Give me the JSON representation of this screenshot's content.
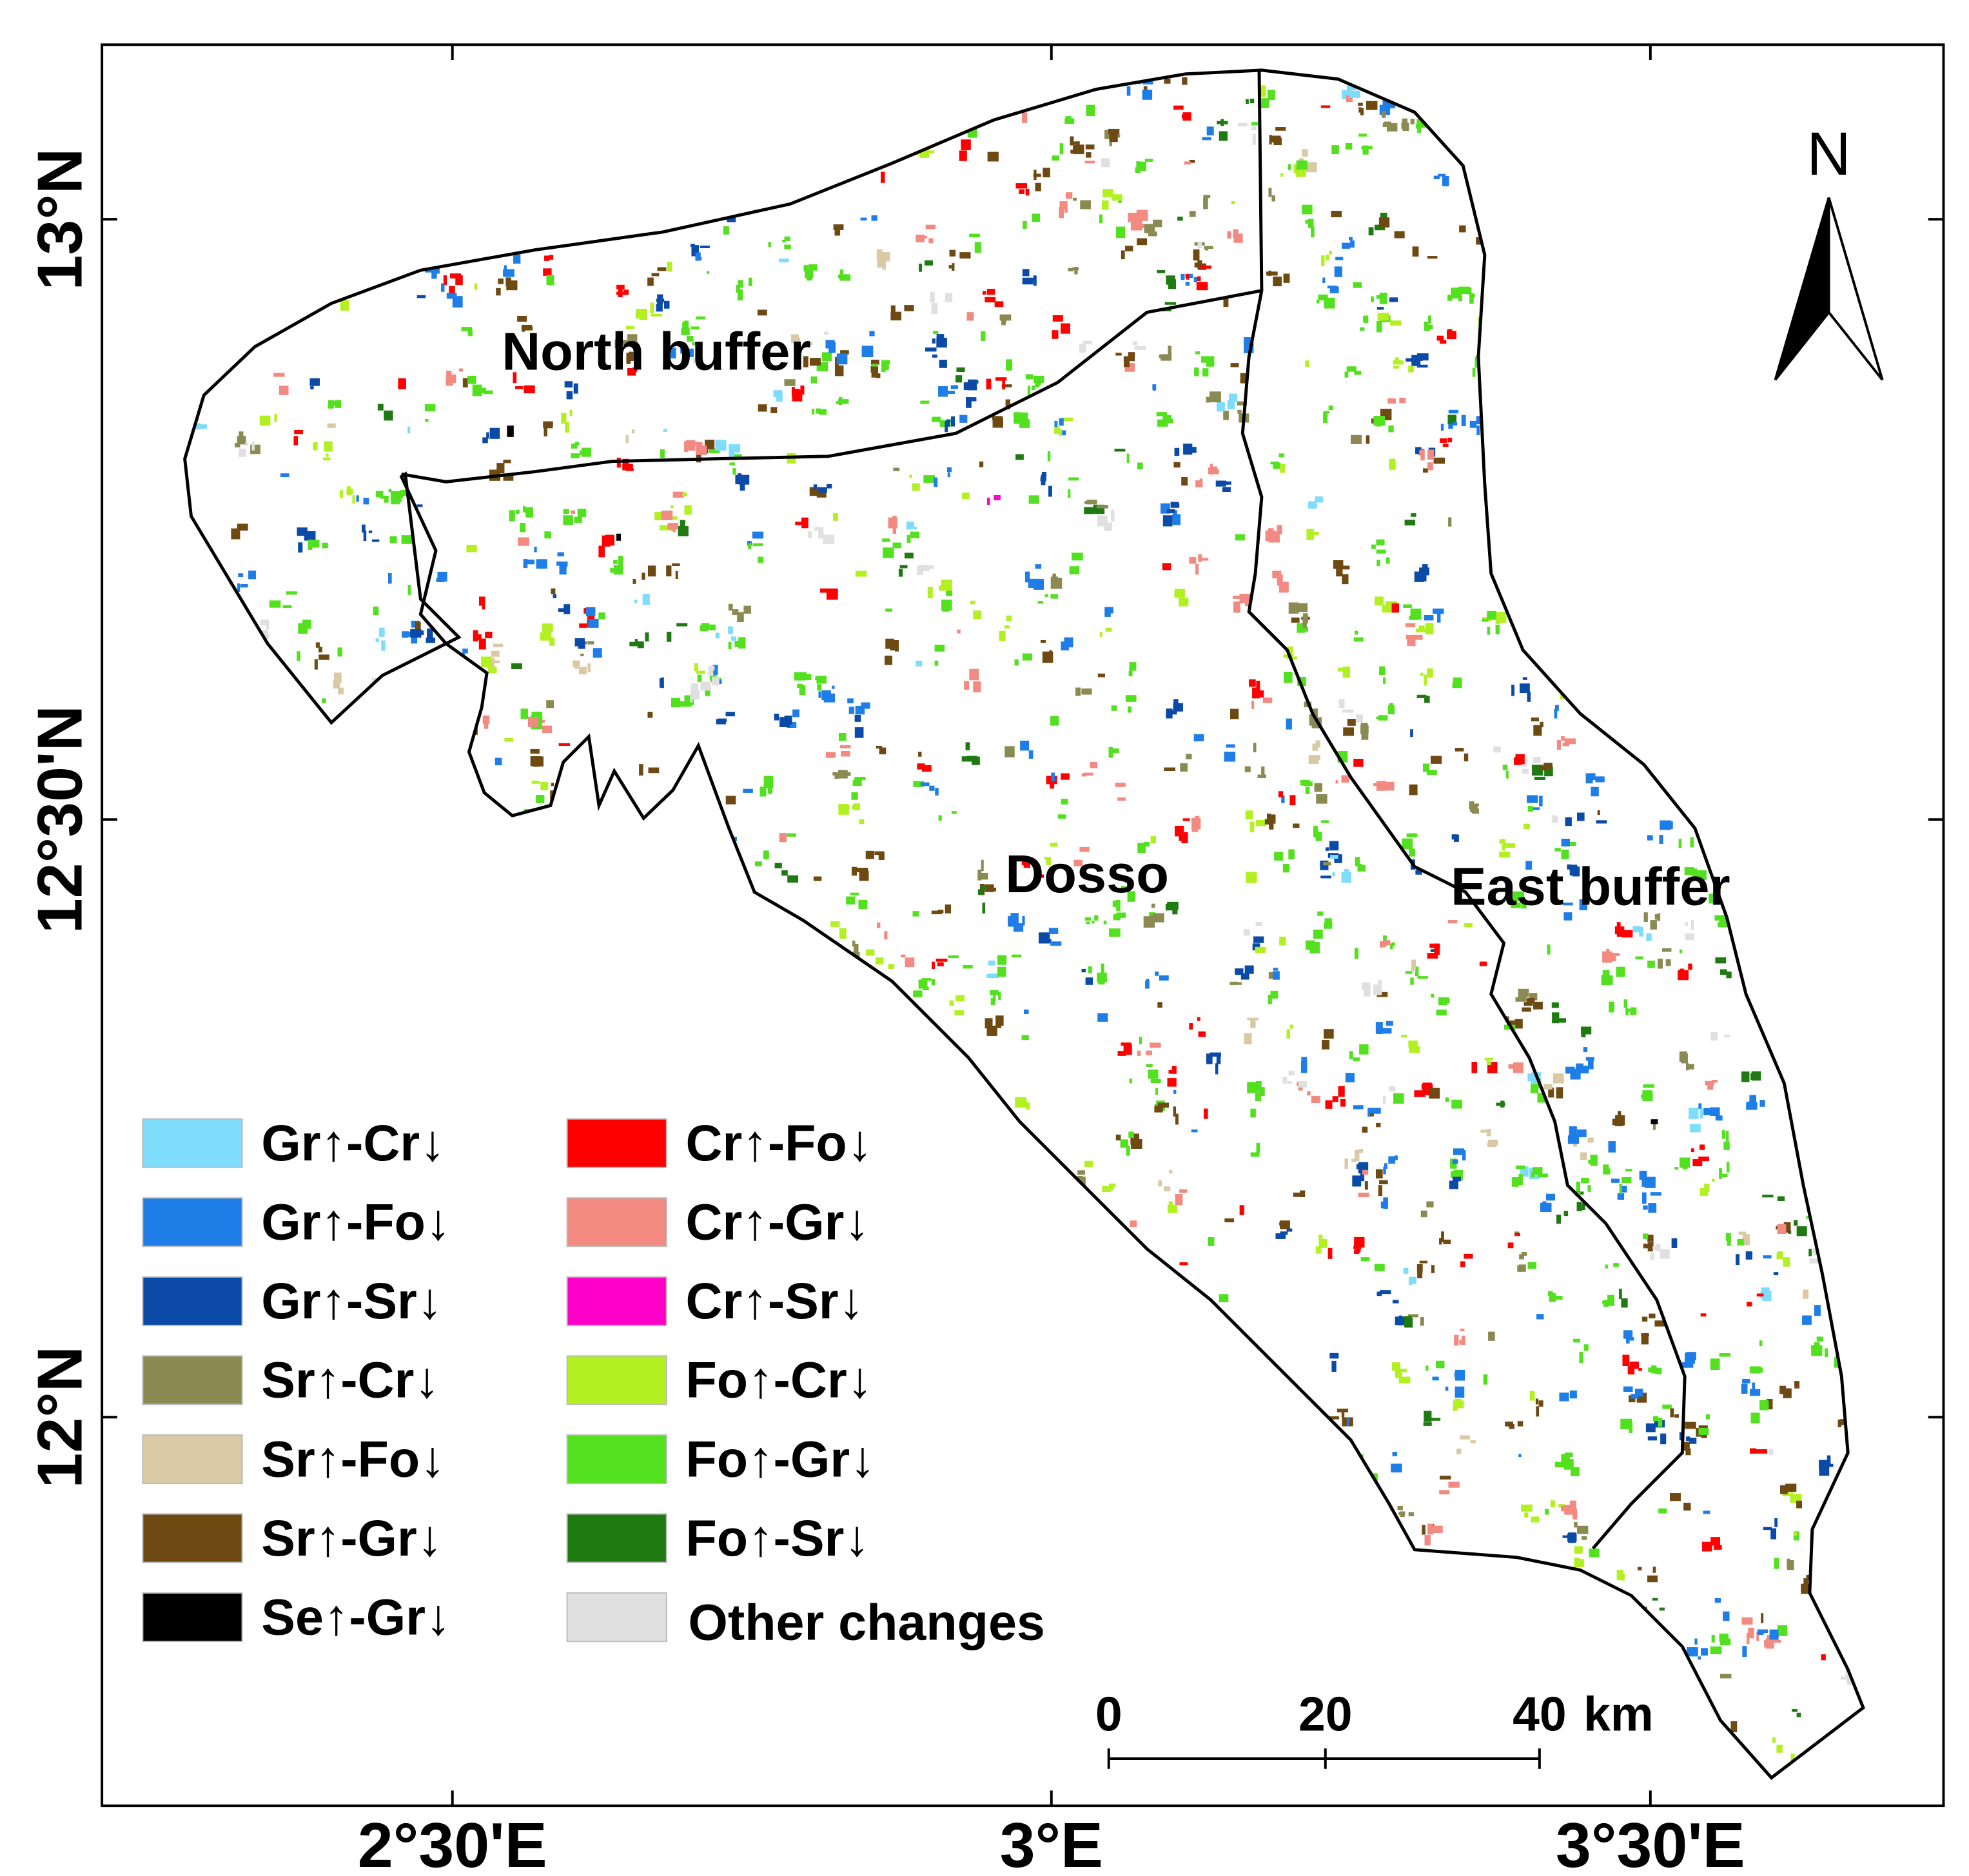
{
  "map": {
    "x_ticks": [
      "2°30'E",
      "3°E",
      "3°30'E"
    ],
    "y_ticks": [
      "13°N",
      "12°30'N",
      "12°N"
    ],
    "regions": [
      "North buffer",
      "Dosso",
      "East buffer"
    ],
    "north_arrow": "N",
    "scale_bar": {
      "labels": [
        "0",
        "20",
        "40"
      ],
      "unit": "km"
    },
    "legend": [
      {
        "label": "Gr↑-Cr↓",
        "color": "#7fdcfb"
      },
      {
        "label": "Gr↑-Fo↓",
        "color": "#1e7de6"
      },
      {
        "label": "Gr↑-Sr↓",
        "color": "#0b4aa6"
      },
      {
        "label": "Sr↑-Cr↓",
        "color": "#8a8a52"
      },
      {
        "label": "Sr↑-Fo↓",
        "color": "#d9c9a5"
      },
      {
        "label": "Sr↑-Gr↓",
        "color": "#6e4a12"
      },
      {
        "label": "Se↑-Gr↓",
        "color": "#000000"
      },
      {
        "label": "Cr↑-Fo↓",
        "color": "#ff0000"
      },
      {
        "label": "Cr↑-Gr↓",
        "color": "#f28a82"
      },
      {
        "label": "Cr↑-Sr↓",
        "color": "#ff00c8"
      },
      {
        "label": "Fo↑-Cr↓",
        "color": "#b2f021"
      },
      {
        "label": "Fo↑-Gr↓",
        "color": "#52e01f"
      },
      {
        "label": "Fo↑-Sr↓",
        "color": "#1f7a12"
      },
      {
        "label": "Other changes",
        "color": "#e0e0e0"
      }
    ]
  }
}
